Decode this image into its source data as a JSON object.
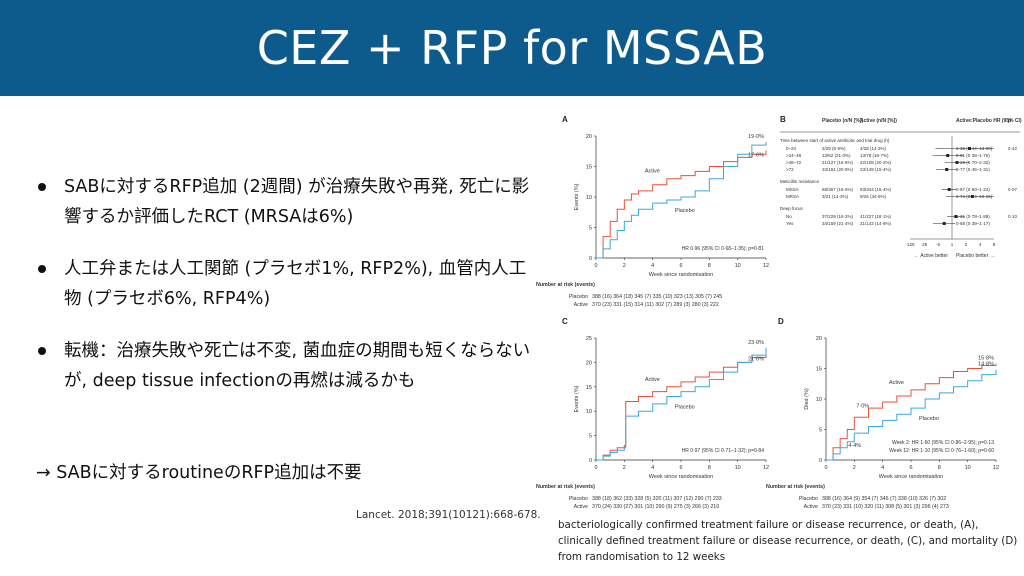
{
  "title": "CEZ + RFP for MSSAB",
  "bullets": [
    "SABに対するRFP追加 (2週間) が治療失敗や再発, 死亡に影響するか評価したRCT (MRSAは6%)",
    "人工弁または人工関節 (プラセボ1%, RFP2%), 血管内人工物 (プラセボ6%, RFP4%)",
    "転機：治療失敗や死亡は不変, 菌血症の期間も短くならないが, deep tissue infectionの再燃は減るかも"
  ],
  "conclusion": "→ SABに対するroutineのRFP追加は不要",
  "citation": "Lancet. 2018;391(10121):668-678.",
  "caption": "bacteriologically confirmed treatment failure or disease recurrence, or death, (A), clinically defined treatment failure or disease recurrence, or death, (C), and mortality (D) from randomisation to 12 weeks",
  "colors": {
    "title_bg": "#0d5a8c",
    "active": "#e8523a",
    "placebo": "#3aa9dc"
  },
  "chart_data": [
    {
      "panel": "A",
      "type": "line",
      "ylabel": "Events (%)",
      "xlabel": "Week since randomisation",
      "xlim": [
        0,
        12
      ],
      "ylim": [
        0,
        20
      ],
      "xticks": [
        0,
        2,
        4,
        6,
        8,
        10,
        12
      ],
      "yticks": [
        0,
        5,
        10,
        15,
        20
      ],
      "series": [
        {
          "name": "Active",
          "color_key": "active",
          "x": [
            0,
            0.5,
            1,
            1.5,
            2,
            2.5,
            3,
            4,
            5,
            6,
            7,
            8,
            9,
            10,
            11,
            12
          ],
          "y": [
            0,
            3.5,
            6,
            8,
            9.5,
            10.5,
            11,
            12,
            13,
            13.5,
            14.2,
            15,
            15.8,
            16.5,
            17,
            17.6
          ],
          "end_label": "17·6%"
        },
        {
          "name": "Placebo",
          "color_key": "placebo",
          "x": [
            0,
            0.5,
            1,
            1.5,
            2,
            2.5,
            3,
            4,
            5,
            6,
            7,
            8,
            9,
            10,
            11,
            12
          ],
          "y": [
            0,
            1.5,
            3,
            4.5,
            6,
            7,
            8,
            9,
            9.5,
            10,
            11,
            13,
            15,
            17,
            18.5,
            19
          ],
          "end_label": "19·0%"
        }
      ],
      "annotation": "HR 0·96 (95% CI 0·68–1·35); p=0·81",
      "at_risk_title": "Number at risk (events)",
      "at_risk": [
        {
          "label": "Placebo",
          "values": "388 (16)  364 (18)  345 (7)   335 (10)  323 (13)  305 (7)   245"
        },
        {
          "label": "Active",
          "values": "370 (23)  331 (15)  314 (11)  302 (7)   289 (3)   280 (3)   222"
        }
      ]
    },
    {
      "panel": "C",
      "type": "line",
      "ylabel": "Events (%)",
      "xlabel": "Week since randomisation",
      "xlim": [
        0,
        12
      ],
      "ylim": [
        0,
        25
      ],
      "xticks": [
        0,
        2,
        4,
        6,
        8,
        10,
        12
      ],
      "yticks": [
        0,
        5,
        10,
        15,
        20,
        25
      ],
      "series": [
        {
          "name": "Active",
          "color_key": "active",
          "x": [
            0,
            0.5,
            1,
            1.5,
            2,
            2.1,
            3,
            4,
            5,
            6,
            7,
            8,
            9,
            10,
            11,
            12
          ],
          "y": [
            0,
            1,
            2,
            2.5,
            3,
            12,
            13,
            14,
            15,
            16,
            17,
            18,
            19,
            20,
            21,
            21.6
          ],
          "end_label": "21·6%"
        },
        {
          "name": "Placebo",
          "color_key": "placebo",
          "x": [
            0,
            0.5,
            1,
            1.5,
            2,
            2.1,
            3,
            4,
            5,
            6,
            7,
            8,
            9,
            10,
            11,
            12
          ],
          "y": [
            0,
            0.8,
            1.5,
            2,
            2.5,
            9,
            10,
            11.5,
            13,
            14,
            15,
            16.5,
            18,
            20,
            21.5,
            23
          ],
          "end_label": "23·0%"
        }
      ],
      "annotation": "HR 0·97 (95% CI 0·71–1·32); p=0·84",
      "at_risk_title": "Number at risk (events)",
      "at_risk": [
        {
          "label": "Placebo",
          "values": "388 (18)  362 (33)  328 (5)   320 (11)  307 (12)  290 (7)   233"
        },
        {
          "label": "Active",
          "values": "370 (24)  330 (27)  301 (10)  290 (9)   275 (3)   266 (3)   210"
        }
      ]
    },
    {
      "panel": "D",
      "type": "line",
      "ylabel": "Died (%)",
      "xlabel": "Week since randomisation",
      "xlim": [
        0,
        12
      ],
      "ylim": [
        0,
        20
      ],
      "xticks": [
        0,
        2,
        4,
        6,
        8,
        10,
        12
      ],
      "yticks": [
        0,
        5,
        10,
        15,
        20
      ],
      "series": [
        {
          "name": "Active",
          "color_key": "active",
          "x": [
            0,
            0.5,
            1,
            1.5,
            2,
            3,
            4,
            5,
            6,
            7,
            8,
            9,
            10,
            11,
            12
          ],
          "y": [
            0,
            2,
            3.5,
            5,
            7,
            8.5,
            9.5,
            10.5,
            11.5,
            12.5,
            13.5,
            14.5,
            15,
            15.5,
            15.8
          ],
          "end_label": "15·8%",
          "mid_label": "7·0%"
        },
        {
          "name": "Placebo",
          "color_key": "placebo",
          "x": [
            0,
            0.5,
            1,
            1.5,
            2,
            3,
            4,
            5,
            6,
            7,
            8,
            9,
            10,
            11,
            12
          ],
          "y": [
            0,
            1,
            2,
            3,
            4.4,
            5.5,
            6.5,
            7.5,
            8.5,
            10,
            11,
            12,
            13,
            14,
            14.8
          ],
          "end_label": "14·8%",
          "mid_label": "4·4%"
        }
      ],
      "annotations": [
        "Week 2: HR 1·60 (95% CI 0·86–2·95); p=0·13",
        "Week 12: HR 1·10 (95% CI 0·76–1·60); p=0·60"
      ],
      "at_risk_title": "Number at risk (events)",
      "at_risk": [
        {
          "label": "Placebo",
          "values": "388 (16)  364 (9)   354 (7)   346 (7)   338 (10)  326 (7)   302"
        },
        {
          "label": "Active",
          "values": "370 (23)  331 (10)  320 (11)  308 (5)   301 (3)   296 (4)   273"
        }
      ]
    },
    {
      "panel": "B",
      "type": "forest",
      "headers": [
        "Placebo (n/N [%])",
        "Active (n/N [%])",
        "Active:Placebo HR (95% CI)",
        "p"
      ],
      "groups": [
        {
          "title": "Time between start of active antibiotic and trial drug (h)",
          "rows": [
            {
              "label": "0–24",
              "placebo": "2/29 (6·9%)",
              "active": "4/28 (14·3%)",
              "hr": 2.38,
              "lo": 0.44,
              "hi": 13.0,
              "hr_text": "2·38 (0·44–13·00)",
              "p": "0·42"
            },
            {
              "label": ">24–48",
              "placebo": "13/62 (21·0%)",
              "active": "13/78 (16·7%)",
              "hr": 0.81,
              "lo": 0.38,
              "hi": 1.76,
              "hr_text": "0·81 (0·38–1·76)",
              "p": ""
            },
            {
              "label": ">48–72",
              "placebo": "21/127 (16·5%)",
              "active": "22/109 (20·2%)",
              "hr": 1.28,
              "lo": 0.7,
              "hi": 2.32,
              "hr_text": "1·28 (0·70–2·32)",
              "p": ""
            },
            {
              "label": ">72",
              "placebo": "33/161 (20·5%)",
              "active": "23/149 (15·4%)",
              "hr": 0.77,
              "lo": 0.45,
              "hi": 1.31,
              "hr_text": "0·77 (0·45–1·31)",
              "p": ""
            }
          ]
        },
        {
          "title": "Meticillin resistance",
          "rows": [
            {
              "label": "MSSA",
              "placebo": "68/367 (18·5%)",
              "active": "53/344 (15·4%)",
              "hr": 0.87,
              "lo": 0.6,
              "hi": 1.24,
              "hr_text": "0·87 (0·60–1·24)",
              "p": "0·07"
            },
            {
              "label": "MRSA",
              "placebo": "3/21 (14·3%)",
              "active": "9/26 (34·6%)",
              "hr": 2.74,
              "lo": 0.74,
              "hi": 10.15,
              "hr_text": "2·74 (0·74–10·15)",
              "p": ""
            }
          ]
        },
        {
          "title": "Deep focus",
          "rows": [
            {
              "label": "No",
              "placebo": "37/229 (16·2%)",
              "active": "41/227 (18·1%)",
              "hr": 1.21,
              "lo": 0.78,
              "hi": 1.89,
              "hr_text": "1·21 (0·78–1·89)",
              "p": "0·10"
            },
            {
              "label": "Yes",
              "placebo": "34/159 (21·4%)",
              "active": "21/142 (14·8%)",
              "hr": 0.68,
              "lo": 0.39,
              "hi": 1.17,
              "hr_text": "0·68 (0·39–1·17)",
              "p": ""
            }
          ]
        }
      ],
      "xticks": [
        "·125",
        "·25",
        "·5",
        "1",
        "2",
        "4",
        "8"
      ],
      "left_label": "Active better",
      "right_label": "Placebo better"
    }
  ]
}
